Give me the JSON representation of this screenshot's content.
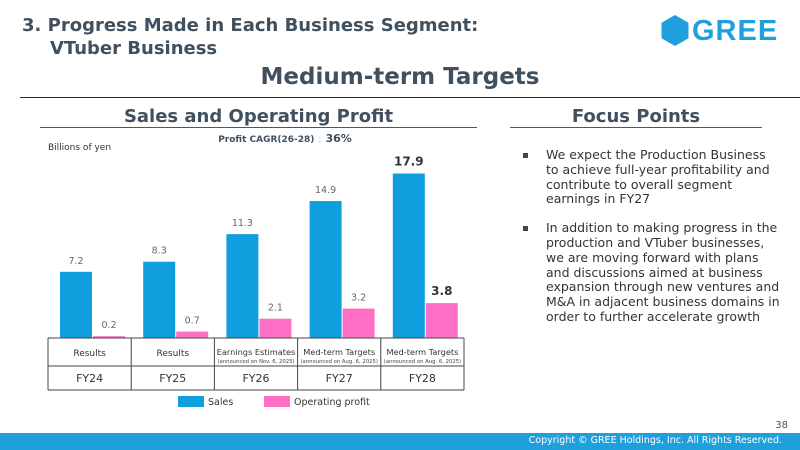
{
  "header": {
    "section_title_line1": "3. Progress Made in Each Business Segment:",
    "section_title_line2": "VTuber Business",
    "brand": "GREE",
    "brand_color": "#1fa0dd"
  },
  "main_title": "Medium-term Targets",
  "left_panel": {
    "heading": "Sales and Operating Profit",
    "cagr_label": "Profit CAGR(26-28)",
    "cagr_sep": ":",
    "cagr_value": "36%",
    "unit": "Billions of yen"
  },
  "chart_data": {
    "type": "bar",
    "categories": [
      "FY24",
      "FY25",
      "FY26",
      "FY27",
      "FY28"
    ],
    "category_labels": [
      "Results",
      "Results",
      "Earnings Estimates",
      "Med-term Targets",
      "Med-term Targets"
    ],
    "category_notes": [
      "",
      "",
      "(announced on Nov. 6, 2025)",
      "(announced on Aug. 6, 2025)",
      "(announced on Aug. 6, 2025)"
    ],
    "series": [
      {
        "name": "Sales",
        "color": "#0f9fdf",
        "values": [
          7.2,
          8.3,
          11.3,
          14.9,
          17.9
        ],
        "labels": [
          "7.2",
          "8.3",
          "11.3",
          "14.9",
          "17.9"
        ]
      },
      {
        "name": "Operating profit",
        "color": "#ff6fc8",
        "values": [
          0.2,
          0.7,
          2.1,
          3.2,
          3.8
        ],
        "labels": [
          "0.2",
          "0.7",
          "2.1",
          "3.2",
          "3.8"
        ]
      }
    ],
    "emphasized_category": "FY28",
    "ylim": [
      0,
      18.5
    ],
    "title": "Sales and Operating Profit",
    "ylabel": "Billions of yen",
    "xlabel": ""
  },
  "right_panel": {
    "heading": "Focus Points",
    "bullets": [
      "We expect the Production Business to achieve full-year profitability and contribute to overall segment earnings in FY27",
      "In addition to making progress in the production and VTuber businesses, we are moving forward with plans and discussions aimed at business expansion through new ventures and M&A in adjacent business domains in order to further accelerate growth"
    ]
  },
  "footer": {
    "page_number": "38",
    "copyright": "Copyright © GREE Holdings, Inc. All Rights Reserved."
  }
}
